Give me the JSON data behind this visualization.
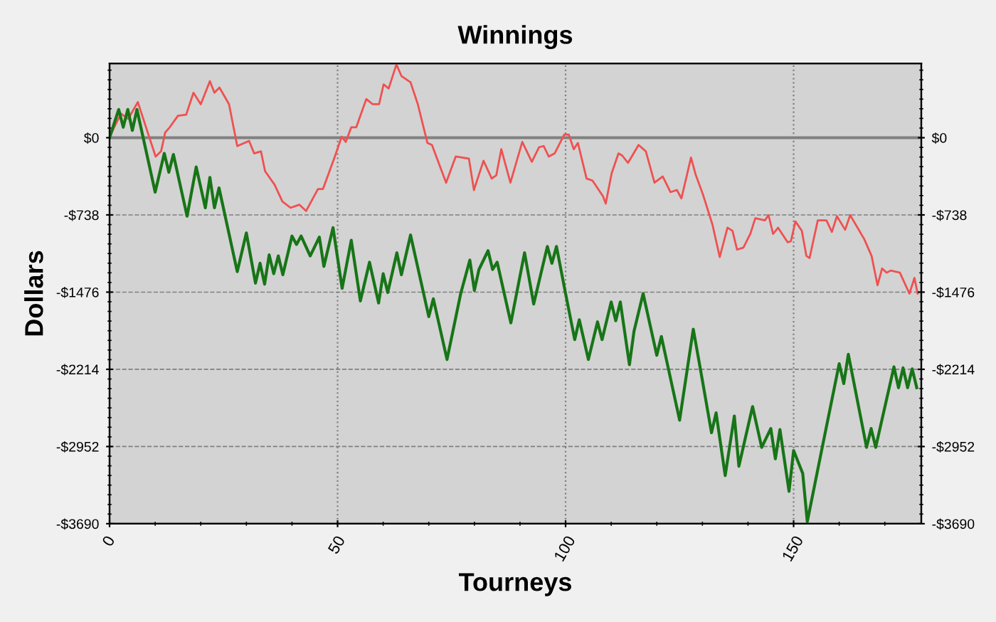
{
  "chart_data": {
    "type": "line",
    "title": "Winnings",
    "xlabel": "Tourneys",
    "ylabel": "Dollars",
    "xlim": [
      0,
      178
    ],
    "xticks": [
      0,
      50,
      100,
      150
    ],
    "ylim": [
      -3690,
      710
    ],
    "yticks": [
      {
        "value": 0,
        "label": "$0"
      },
      {
        "value": -738,
        "label": "-$738"
      },
      {
        "value": -1476,
        "label": "-$1476"
      },
      {
        "value": -2214,
        "label": "-$2214"
      },
      {
        "value": -2952,
        "label": "-$2952"
      },
      {
        "value": -3690,
        "label": "-$3690"
      }
    ],
    "y2lim": [
      -3690,
      710
    ],
    "y2ticks": [
      {
        "value": 0,
        "label": "$0"
      },
      {
        "value": -738,
        "label": "-$738"
      },
      {
        "value": -1476,
        "label": "-$1476"
      },
      {
        "value": -2214,
        "label": "-$2214"
      },
      {
        "value": -2952,
        "label": "-$2952"
      },
      {
        "value": -3690,
        "label": "-$3690"
      }
    ],
    "grid": true,
    "legend": false,
    "marker": "none",
    "line_style": "solid",
    "ref_lines": [
      {
        "axis": "y",
        "value": 0,
        "color": "#808080",
        "line_style": "solid"
      }
    ],
    "series": [
      {
        "color": "#f05050",
        "x": [
          0,
          2.5,
          4.1,
          6.2,
          8.0,
          10.1,
          11.3,
          12.2,
          13.2,
          15.0,
          16.8,
          18.4,
          20.0,
          22.0,
          23.0,
          24.1,
          26.2,
          28.0,
          30.6,
          31.7,
          33.2,
          34.1,
          36.2,
          37.9,
          39.7,
          41.6,
          43.1,
          45.7,
          46.8,
          49.4,
          50.9,
          51.8,
          53.0,
          54.1,
          56.3,
          57.7,
          59.1,
          60.1,
          61.2,
          62.9,
          64.0,
          66.0,
          67.6,
          69.7,
          70.7,
          73.8,
          75.9,
          78.8,
          79.9,
          82.0,
          83.8,
          84.8,
          85.9,
          87.9,
          90.5,
          92.6,
          94.2,
          95.2,
          96.3,
          97.6,
          99.7,
          100.7,
          101.8,
          102.7,
          104.6,
          105.9,
          108.2,
          108.8,
          110.1,
          111.6,
          112.4,
          113.7,
          116.0,
          117.6,
          119.5,
          121.3,
          123.0,
          124.4,
          125.4,
          127.5,
          128.5,
          130.1,
          132.2,
          133.8,
          135.5,
          136.6,
          137.6,
          139.0,
          140.5,
          141.6,
          143.7,
          144.5,
          145.5,
          146.6,
          148.7,
          149.4,
          150.4,
          151.8,
          152.8,
          153.5,
          155.3,
          157.2,
          158.4,
          159.5,
          161.3,
          162.4,
          165.5,
          167.1,
          168.4,
          169.4,
          170.4,
          171.3,
          173.3,
          175.4,
          176.5,
          177.2
        ],
        "values": [
          10,
          230,
          180,
          340,
          100,
          -180,
          -130,
          50,
          100,
          210,
          220,
          430,
          320,
          540,
          430,
          480,
          320,
          -80,
          -30,
          -150,
          -130,
          -320,
          -450,
          -610,
          -670,
          -640,
          -700,
          -490,
          -490,
          -180,
          10,
          -40,
          100,
          100,
          370,
          320,
          320,
          510,
          470,
          700,
          590,
          530,
          320,
          -50,
          -70,
          -430,
          -180,
          -200,
          -500,
          -220,
          -390,
          -360,
          -110,
          -430,
          -40,
          -230,
          -90,
          -80,
          -180,
          -150,
          30,
          30,
          -110,
          -50,
          -390,
          -410,
          -560,
          -630,
          -340,
          -150,
          -170,
          -240,
          -70,
          -130,
          -430,
          -370,
          -520,
          -500,
          -580,
          -190,
          -350,
          -540,
          -830,
          -1140,
          -860,
          -890,
          -1070,
          -1050,
          -920,
          -770,
          -790,
          -740,
          -920,
          -860,
          -1000,
          -990,
          -800,
          -890,
          -1130,
          -1150,
          -790,
          -790,
          -900,
          -750,
          -880,
          -740,
          -970,
          -1130,
          -1410,
          -1250,
          -1290,
          -1270,
          -1290,
          -1490,
          -1340,
          -1490
        ]
      },
      {
        "color": "#177517",
        "x": [
          0,
          2,
          3,
          4,
          5,
          6,
          10,
          12,
          13,
          14,
          17,
          19,
          21,
          22,
          23,
          24,
          28,
          30,
          32,
          33,
          34,
          35,
          36,
          37,
          38,
          40,
          41,
          42,
          44,
          46,
          47,
          49,
          51,
          53,
          55,
          57,
          59,
          60,
          61,
          63,
          64,
          66,
          70,
          71,
          74,
          77,
          79,
          80,
          81,
          83,
          84,
          85,
          88,
          91,
          93,
          96,
          97,
          98,
          100,
          102,
          103,
          105,
          107,
          108,
          110,
          111,
          112,
          114,
          115,
          117,
          120,
          121,
          125,
          128,
          130,
          132,
          133,
          135,
          137,
          138,
          141,
          143,
          145,
          146,
          147,
          149,
          150,
          152,
          153,
          156,
          160,
          161,
          162,
          166,
          167,
          168,
          172,
          173,
          174,
          175,
          176,
          177
        ],
        "values": [
          0,
          270,
          100,
          270,
          70,
          270,
          -520,
          -150,
          -330,
          -160,
          -750,
          -280,
          -670,
          -380,
          -670,
          -480,
          -1280,
          -910,
          -1390,
          -1200,
          -1400,
          -1120,
          -1300,
          -1130,
          -1310,
          -940,
          -1020,
          -940,
          -1130,
          -950,
          -1230,
          -860,
          -1440,
          -980,
          -1560,
          -1190,
          -1580,
          -1300,
          -1480,
          -1100,
          -1310,
          -930,
          -1710,
          -1540,
          -2120,
          -1490,
          -1170,
          -1460,
          -1260,
          -1080,
          -1260,
          -1190,
          -1770,
          -1100,
          -1590,
          -1040,
          -1200,
          -1040,
          -1490,
          -1930,
          -1740,
          -2120,
          -1760,
          -1930,
          -1570,
          -1750,
          -1570,
          -2170,
          -1850,
          -1490,
          -2080,
          -1900,
          -2700,
          -1830,
          -2320,
          -2820,
          -2630,
          -3230,
          -2660,
          -3140,
          -2570,
          -2960,
          -2780,
          -3070,
          -2790,
          -3380,
          -2990,
          -3210,
          -3670,
          -3020,
          -2160,
          -2350,
          -2070,
          -2960,
          -2780,
          -2960,
          -2190,
          -2390,
          -2200,
          -2390,
          -2210,
          -2390
        ]
      }
    ]
  }
}
